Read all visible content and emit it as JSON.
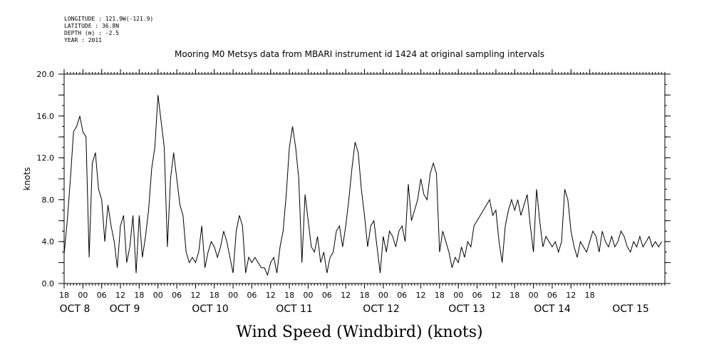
{
  "header": {
    "longitude": "LONGITUDE : 121.9W(-121.9)",
    "latitude": "LATITUDE : 36.8N",
    "depth": "DEPTH (m) : -2.5",
    "year": "YEAR : 2011"
  },
  "chart_data": {
    "type": "line",
    "title": "Mooring M0 Metsys data from MBARI instrument id 1424 at original sampling intervals",
    "bottom_title": "Wind Speed (Windbird) (knots)",
    "xlabel": "",
    "ylabel": "knots",
    "ylim": [
      0,
      20
    ],
    "yticks": [
      "0.0",
      "4.0",
      "8.0",
      "12.0",
      "16.0",
      "20.0"
    ],
    "xlim_hours_from_Oct7_18": [
      0,
      192
    ],
    "hour_ticks": [
      "18",
      "00",
      "06",
      "12",
      "18",
      "00",
      "06",
      "12",
      "18",
      "00",
      "06",
      "12",
      "18",
      "00",
      "06",
      "12",
      "18",
      "00",
      "06",
      "12",
      "18",
      "00",
      "06",
      "12",
      "18",
      "00",
      "06",
      "12",
      "18"
    ],
    "date_labels": [
      "OCT  8",
      "OCT  9",
      "OCT 10",
      "OCT 11",
      "OCT 12",
      "OCT 13",
      "OCT 14",
      "OCT 15"
    ],
    "grid": false,
    "series": [
      {
        "name": "",
        "color": "#000000",
        "x": [
          0,
          1,
          2,
          3,
          4,
          5,
          6,
          7,
          8,
          9,
          10,
          11,
          12,
          13,
          14,
          15,
          16,
          17,
          18,
          19,
          20,
          21,
          22,
          23,
          24,
          25,
          26,
          27,
          28,
          29,
          30,
          31,
          32,
          33,
          34,
          35,
          36,
          37,
          38,
          39,
          40,
          41,
          42,
          43,
          44,
          45,
          46,
          47,
          48,
          49,
          50,
          51,
          52,
          53,
          54,
          55,
          56,
          57,
          58,
          59,
          60,
          61,
          62,
          63,
          64,
          65,
          66,
          67,
          68,
          69,
          70,
          71,
          72,
          73,
          74,
          75,
          76,
          77,
          78,
          79,
          80,
          81,
          82,
          83,
          84,
          85,
          86,
          87,
          88,
          89,
          90,
          91,
          92,
          93,
          94,
          95,
          96,
          97,
          98,
          99,
          100,
          101,
          102,
          103,
          104,
          105,
          106,
          107,
          108,
          109,
          110,
          111,
          112,
          113,
          114,
          115,
          116,
          117,
          118,
          119,
          120,
          121,
          122,
          123,
          124,
          125,
          126,
          127,
          128,
          129,
          130,
          131,
          132,
          133,
          134,
          135,
          136,
          137,
          138,
          139,
          140,
          141,
          142,
          143,
          144,
          145,
          146,
          147,
          148,
          149,
          150,
          151,
          152,
          153,
          154,
          155,
          156,
          157,
          158,
          159,
          160,
          161,
          162,
          163,
          164,
          165,
          166,
          167,
          168,
          169,
          170,
          171,
          172,
          173,
          174,
          175,
          176,
          177,
          178,
          179,
          180,
          181,
          182,
          183,
          184,
          185,
          186,
          187,
          188,
          189,
          190,
          191
        ],
        "y": [
          2.8,
          6.0,
          10.0,
          14.5,
          15.0,
          16.0,
          14.5,
          14.0,
          2.5,
          11.5,
          12.5,
          9.0,
          8.0,
          4.0,
          7.5,
          5.5,
          4.0,
          1.5,
          5.5,
          6.5,
          2.0,
          3.5,
          6.5,
          1.0,
          6.5,
          2.5,
          4.5,
          7.0,
          11.0,
          13.0,
          18.0,
          15.5,
          13.0,
          3.5,
          10.0,
          12.5,
          10.0,
          7.5,
          6.5,
          3.0,
          2.0,
          2.5,
          2.0,
          3.0,
          5.5,
          1.5,
          3.0,
          4.0,
          3.5,
          2.5,
          3.5,
          5.0,
          4.0,
          2.5,
          1.0,
          5.0,
          6.5,
          5.5,
          1.0,
          2.5,
          2.0,
          2.5,
          2.0,
          1.5,
          1.5,
          0.8,
          2.0,
          2.5,
          1.0,
          3.5,
          5.0,
          8.5,
          13.0,
          15.0,
          13.0,
          10.0,
          2.0,
          8.5,
          6.0,
          3.5,
          3.0,
          4.5,
          2.0,
          3.0,
          1.0,
          2.5,
          3.0,
          5.0,
          5.5,
          3.5,
          5.5,
          8.0,
          11.0,
          13.5,
          12.5,
          9.0,
          6.5,
          3.5,
          5.5,
          6.0,
          3.5,
          1.0,
          4.5,
          3.0,
          5.0,
          4.5,
          3.5,
          5.0,
          5.5,
          4.0,
          9.5,
          6.0,
          7.0,
          8.0,
          10.0,
          8.5,
          8.0,
          10.5,
          11.5,
          10.5,
          3.0,
          5.0,
          4.0,
          3.0,
          1.5,
          2.5,
          2.0,
          3.5,
          2.5,
          4.0,
          3.5,
          5.5,
          6.0,
          6.5,
          7.0,
          7.5,
          8.0,
          6.5,
          7.0,
          4.0,
          2.0,
          5.5,
          7.0,
          8.0,
          7.0,
          8.0,
          6.5,
          7.5,
          8.5,
          5.5,
          3.0,
          9.0,
          6.0,
          3.5,
          4.5,
          4.0,
          3.5,
          4.0,
          3.0,
          4.0,
          9.0,
          8.0,
          5.0,
          3.5,
          2.5,
          4.0,
          3.5,
          3.0,
          4.0,
          5.0,
          4.5,
          3.0,
          5.0,
          4.0,
          3.5,
          4.5,
          3.5,
          4.0,
          5.0,
          4.5,
          3.5,
          3.0,
          4.0,
          3.5,
          4.5,
          3.5,
          4.0,
          4.5,
          3.5,
          4.0,
          3.5,
          4.0
        ]
      }
    ]
  }
}
